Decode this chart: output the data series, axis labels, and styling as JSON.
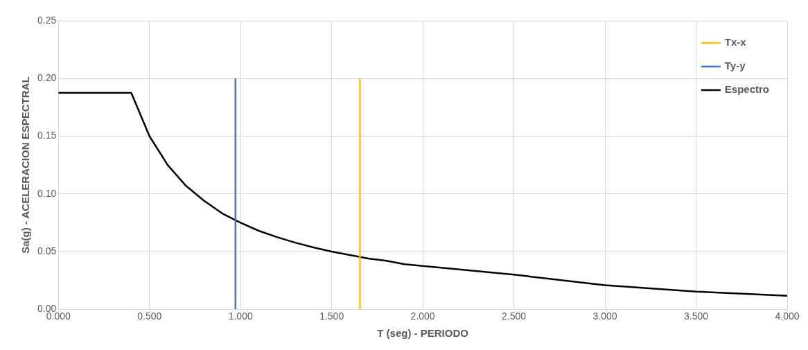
{
  "chart_data": {
    "type": "line",
    "xlabel": "T (seg) - PERIODO",
    "ylabel": "Sa(g) - ACELERACION ESPECTRAL",
    "xlim": [
      0,
      4
    ],
    "ylim": [
      0,
      0.25
    ],
    "xticks": [
      {
        "value": 0,
        "label": "0.000"
      },
      {
        "value": 0.5,
        "label": "0.500"
      },
      {
        "value": 1,
        "label": "1.000"
      },
      {
        "value": 1.5,
        "label": "1.500"
      },
      {
        "value": 2,
        "label": "2.000"
      },
      {
        "value": 2.5,
        "label": "2.500"
      },
      {
        "value": 3,
        "label": "3.000"
      },
      {
        "value": 3.5,
        "label": "3.500"
      },
      {
        "value": 4,
        "label": "4.000"
      }
    ],
    "yticks": [
      {
        "value": 0,
        "label": "0.00"
      },
      {
        "value": 0.05,
        "label": "0.05"
      },
      {
        "value": 0.1,
        "label": "0.10"
      },
      {
        "value": 0.15,
        "label": "0.15"
      },
      {
        "value": 0.2,
        "label": "0.20"
      },
      {
        "value": 0.25,
        "label": "0.25"
      }
    ],
    "grid": true,
    "legend": "top right",
    "marker": "none",
    "line_style": "solid",
    "series": [
      {
        "name": "Tx-x",
        "color": "#ffc000",
        "x": [
          1.655,
          1.655
        ],
        "values": [
          0,
          0.2
        ]
      },
      {
        "name": "Ty-y",
        "color": "#4472c4",
        "x": [
          0.972,
          0.972
        ],
        "values": [
          0,
          0.2
        ]
      },
      {
        "name": "Espectro",
        "color": "#000000",
        "x": [
          0,
          0.1,
          0.2,
          0.3,
          0.4,
          0.5,
          0.6,
          0.7,
          0.8,
          0.9,
          1.0,
          1.1,
          1.2,
          1.3,
          1.4,
          1.5,
          1.6,
          1.7,
          1.8,
          1.9,
          2.0,
          2.5,
          3.0,
          3.5,
          4.0
        ],
        "values": [
          0.1875,
          0.1875,
          0.1875,
          0.1875,
          0.1875,
          0.15,
          0.125,
          0.107,
          0.094,
          0.083,
          0.075,
          0.068,
          0.0625,
          0.0577,
          0.0536,
          0.05,
          0.047,
          0.044,
          0.042,
          0.039,
          0.0375,
          0.03,
          0.0208,
          0.0153,
          0.0117
        ]
      }
    ]
  }
}
